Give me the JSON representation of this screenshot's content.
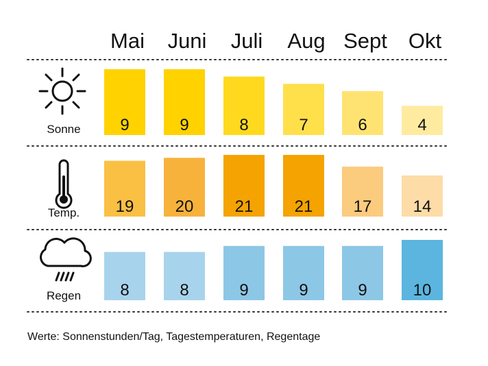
{
  "chart_data": {
    "type": "bar",
    "categories": [
      "Mai",
      "Juni",
      "Juli",
      "Aug",
      "Sept",
      "Okt"
    ],
    "rows": [
      {
        "label": "Sonne",
        "icon": "sun-icon",
        "values": [
          9,
          9,
          8,
          7,
          6,
          4
        ],
        "colors": [
          "#FFD200",
          "#FFD200",
          "#FFD91E",
          "#FFDF4A",
          "#FFE372",
          "#FFEBA0"
        ]
      },
      {
        "label": "Temp.",
        "icon": "thermometer-icon",
        "values": [
          19,
          20,
          21,
          21,
          17,
          14
        ],
        "colors": [
          "#F9C044",
          "#F7B23C",
          "#F5A300",
          "#F5A300",
          "#FBCB7E",
          "#FDDCA8"
        ]
      },
      {
        "label": "Regen",
        "icon": "rain-cloud-icon",
        "values": [
          8,
          8,
          9,
          9,
          9,
          10
        ],
        "colors": [
          "#A8D3EC",
          "#A8D3EC",
          "#8DC7E6",
          "#8DC7E6",
          "#8DC7E6",
          "#5BB5DF"
        ]
      }
    ],
    "footnote": "Werte: Sonnenstunden/Tag, Tagestemperaturen, Regentage"
  }
}
